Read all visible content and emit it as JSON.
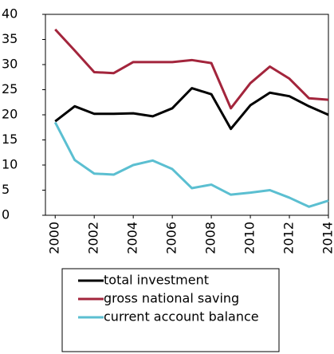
{
  "chart_data": {
    "type": "line",
    "x": [
      2000,
      2001,
      2002,
      2003,
      2004,
      2005,
      2006,
      2007,
      2008,
      2009,
      2010,
      2011,
      2012,
      2013,
      2014
    ],
    "series": [
      {
        "name": "total investment",
        "color": "#000000",
        "values": [
          18.7,
          21.7,
          20.2,
          20.2,
          20.3,
          19.7,
          21.3,
          25.3,
          24.1,
          17.2,
          21.9,
          24.4,
          23.7,
          21.7,
          20.0
        ]
      },
      {
        "name": "gross national saving",
        "color": "#a3253c",
        "values": [
          37.0,
          32.8,
          28.5,
          28.3,
          30.5,
          30.5,
          30.5,
          30.9,
          30.3,
          21.3,
          26.3,
          29.6,
          27.2,
          23.3,
          23.0
        ]
      },
      {
        "name": "current account balance",
        "color": "#5bbfd1",
        "values": [
          18.5,
          11.0,
          8.3,
          8.1,
          10.0,
          10.9,
          9.2,
          5.4,
          6.1,
          4.1,
          4.5,
          5.0,
          3.5,
          1.7,
          2.9
        ]
      }
    ],
    "xlim": [
      1999.5,
      2014
    ],
    "xticks": [
      2000,
      2002,
      2004,
      2006,
      2008,
      2010,
      2012,
      2014
    ],
    "ylim": [
      0,
      40
    ],
    "yticks": [
      0,
      5,
      10,
      15,
      20,
      25,
      30,
      35,
      40
    ],
    "legend": "bottom"
  }
}
